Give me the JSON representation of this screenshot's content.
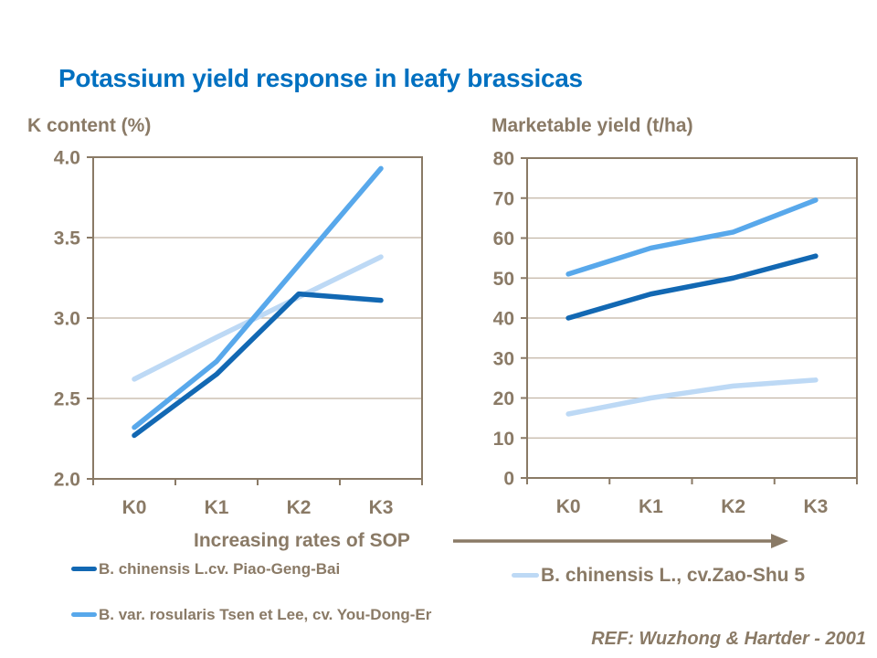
{
  "slide": {
    "title": "Potassium yield response in leafy brassicas",
    "x_axis_note": "Increasing rates of SOP",
    "ref": "REF: Wuzhong & Hartder - 2001"
  },
  "colors": {
    "title_blue": "#0070C0",
    "text_brown": "#8A7A66",
    "gridline": "#C2B5A5",
    "series_dark_blue": "#1268B3",
    "series_medium_blue": "#58A8EB",
    "series_light_blue": "#BDD9F5"
  },
  "legend": {
    "left": [
      {
        "label": "B. chinensis L.cv. Piao-Geng-Bai",
        "color": "#1268B3"
      },
      {
        "label": "B. var. rosularis Tsen et Lee, cv. You-Dong-Er",
        "color": "#58A8EB"
      }
    ],
    "right": {
      "label": "B. chinensis L., cv.Zao-Shu 5",
      "color": "#BDD9F5"
    }
  },
  "chart_data": [
    {
      "type": "line",
      "title": "K content (%)",
      "categories": [
        "K0",
        "K1",
        "K2",
        "K3"
      ],
      "ylim": [
        2.0,
        4.0
      ],
      "ytick_labels": [
        "4.0",
        "3.5",
        "3.0",
        "2.5",
        "2.0"
      ],
      "grid": true,
      "draw_order": [
        2,
        0,
        1
      ],
      "series": [
        {
          "name": "B. chinensis L.cv. Piao-Geng-Bai",
          "color": "#1268B3",
          "values": [
            2.27,
            2.65,
            3.15,
            3.11
          ]
        },
        {
          "name": "B. var. rosularis Tsen et Lee, cv. You-Dong-Er",
          "color": "#58A8EB",
          "values": [
            2.32,
            2.73,
            3.33,
            3.93
          ]
        },
        {
          "name": "B. chinensis L., cv.Zao-Shu 5",
          "color": "#BDD9F5",
          "values": [
            2.62,
            2.88,
            3.13,
            3.38
          ]
        }
      ]
    },
    {
      "type": "line",
      "title": "Marketable yield (t/ha)",
      "categories": [
        "K0",
        "K1",
        "K2",
        "K3"
      ],
      "ylim": [
        0,
        80
      ],
      "ytick_labels": [
        "80",
        "70",
        "60",
        "50",
        "40",
        "30",
        "20",
        "10",
        "0"
      ],
      "grid": true,
      "draw_order": [
        2,
        0,
        1
      ],
      "series": [
        {
          "name": "B. chinensis L.cv. Piao-Geng-Bai",
          "color": "#1268B3",
          "values": [
            40,
            46,
            50,
            55.5
          ]
        },
        {
          "name": "B. var. rosularis Tsen et Lee, cv. You-Dong-Er",
          "color": "#58A8EB",
          "values": [
            51,
            57.5,
            61.5,
            69.5
          ]
        },
        {
          "name": "B. chinensis L., cv.Zao-Shu 5",
          "color": "#BDD9F5",
          "values": [
            16,
            20,
            23,
            24.5
          ]
        }
      ]
    }
  ]
}
